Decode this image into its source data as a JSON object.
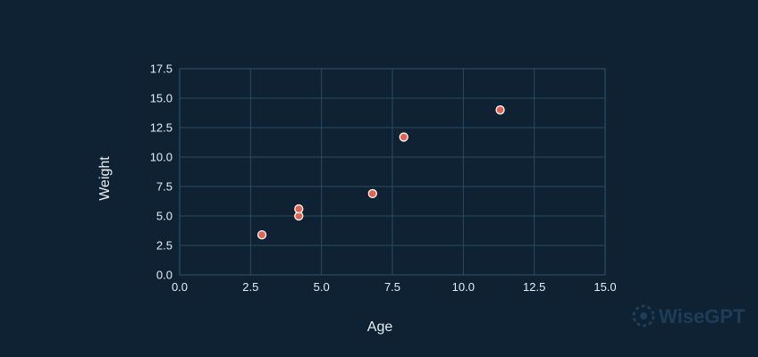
{
  "chart_data": {
    "type": "scatter",
    "title": "",
    "xlabel": "Age",
    "ylabel": "Weight",
    "xlim": [
      0,
      15
    ],
    "ylim": [
      0,
      17.5
    ],
    "x_ticks": [
      "0.0",
      "2.5",
      "5.0",
      "7.5",
      "10.0",
      "12.5",
      "15.0"
    ],
    "y_ticks": [
      "0.0",
      "2.5",
      "5.0",
      "7.5",
      "10.0",
      "12.5",
      "15.0",
      "17.5"
    ],
    "grid": true,
    "series": [
      {
        "x": [
          2.9,
          4.2,
          4.2,
          6.8,
          7.9,
          11.3
        ],
        "y": [
          3.4,
          5.0,
          5.6,
          6.9,
          11.7,
          14.0
        ]
      }
    ]
  },
  "colors": {
    "background": "#0f2233",
    "point": "#e8604c",
    "grid": "#2a4a63"
  },
  "watermark": {
    "text": "WiseGPT",
    "icon": "wisegpt-logo-icon"
  }
}
